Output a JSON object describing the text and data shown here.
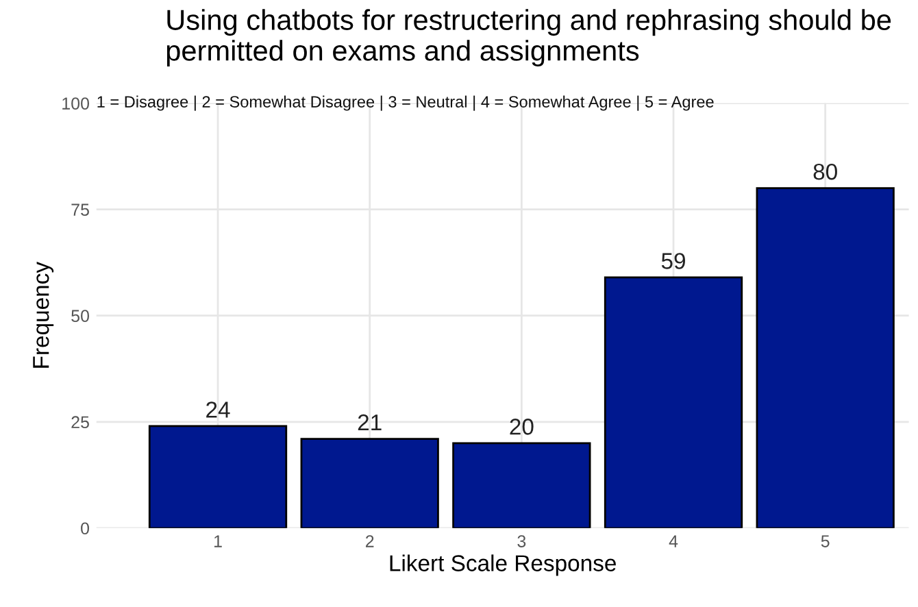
{
  "chart_data": {
    "type": "bar",
    "title": "Using chatbots for restructering and rephrasing should be permitted on exams and assignments",
    "xlabel": "Likert Scale Response",
    "ylabel": "Frequency",
    "categories": [
      "1",
      "2",
      "3",
      "4",
      "5"
    ],
    "values": [
      24,
      21,
      20,
      59,
      80
    ],
    "color": "#00188f",
    "ylim": [
      0,
      100
    ],
    "yticks": [
      0,
      25,
      50,
      75,
      100
    ],
    "grid": true,
    "data_labels": true,
    "annotations": [
      "1 = Disagree | 2 = Somewhat Disagree | 3 = Neutral | 4 = Somewhat Agree | 5 = Agree"
    ]
  }
}
